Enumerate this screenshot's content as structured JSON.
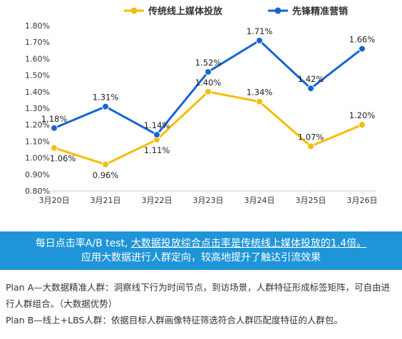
{
  "chart_data": {
    "type": "line",
    "categories": [
      "3月20日",
      "3月21日",
      "3月22日",
      "3月23日",
      "3月24日",
      "3月25日",
      "3月26日"
    ],
    "series": [
      {
        "name": "传统线上媒体投放",
        "color": "#f5bd06",
        "values": [
          1.06,
          0.96,
          1.11,
          1.4,
          1.34,
          1.07,
          1.2
        ],
        "labels": [
          "1.06%",
          "0.96%",
          "1.11%",
          "1.40%",
          "1.34%",
          "1.07%",
          "1.20%"
        ]
      },
      {
        "name": "先锋精准营销",
        "color": "#1565d3",
        "values": [
          1.18,
          1.31,
          1.14,
          1.52,
          1.71,
          1.42,
          1.66
        ],
        "labels": [
          "1.18%",
          "1.31%",
          "1.14%",
          "1.52%",
          "1.71%",
          "1.42%",
          "1.66%"
        ]
      }
    ],
    "ylim": [
      0.8,
      1.8
    ],
    "yticks": [
      "0.80%",
      "0.90%",
      "1.00%",
      "1.10%",
      "1.20%",
      "1.30%",
      "1.40%",
      "1.50%",
      "1.60%",
      "1.70%",
      "1.80%"
    ],
    "legend_position": "top-center",
    "grid": false
  },
  "banner": {
    "line1_prefix": "每日点击率A/B test, ",
    "line1_underlined": "大数据投放综合点击率是传统线上媒体投放的1.4倍。",
    "line2": "应用大数据进行人群定向，较高地提升了触达引流效果"
  },
  "notes": {
    "plan_a": "Plan A—大数据精准人群：洞察线下行为时间节点，到访场景，人群特征形成标签矩阵，可自由进行人群组合。（大数据优势）",
    "plan_b": "Plan B—线上+LBS人群：依据目标人群画像特征筛选符合人群匹配度特征的人群包。"
  }
}
